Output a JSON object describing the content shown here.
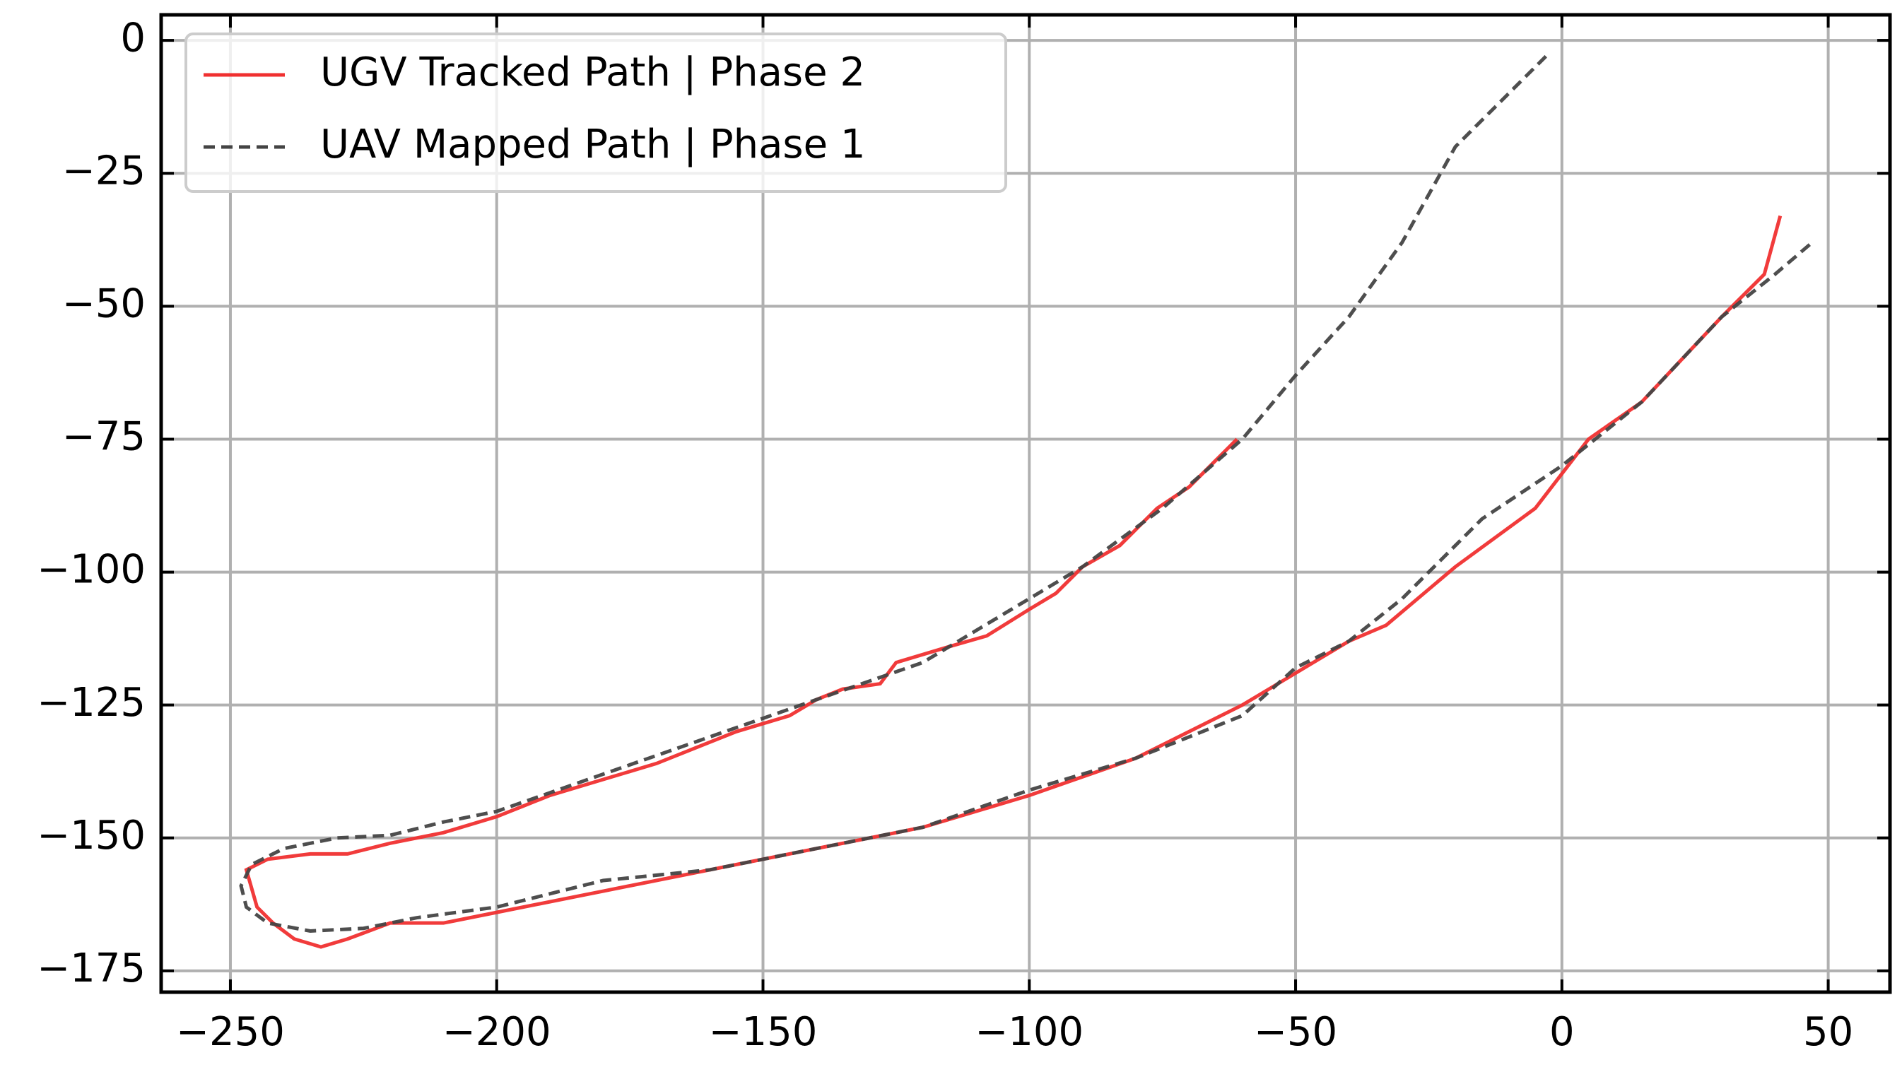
{
  "chart_data": {
    "type": "line",
    "series": [
      {
        "name": "UGV Tracked Path | Phase 2",
        "color": "#f03030",
        "dash": false,
        "x": [
          -61,
          -66,
          -70,
          -76,
          -83,
          -90,
          -95,
          -100,
          -108,
          -115,
          -125,
          -128,
          -135,
          -140,
          -145,
          -155,
          -160,
          -170,
          -180,
          -190,
          -200,
          -210,
          -220,
          -228,
          -235,
          -243,
          -247,
          -245,
          -242,
          -238,
          -233,
          -228,
          -220,
          -210,
          -200,
          -180,
          -160,
          -140,
          -120,
          -100,
          -80,
          -60,
          -40,
          -33,
          -20,
          -5,
          5,
          15,
          30,
          38,
          41
        ],
        "values": [
          -75,
          -80,
          -84,
          -88,
          -95,
          -99,
          -104,
          -107,
          -112,
          -114,
          -117,
          -121,
          -122,
          -124,
          -127,
          -130,
          -132,
          -136,
          -139,
          -142,
          -146,
          -149,
          -151,
          -153,
          -153,
          -154,
          -156,
          -163,
          -166,
          -169,
          -170.5,
          -169,
          -166,
          -166,
          -164,
          -160,
          -156,
          -152,
          -148,
          -142,
          -135,
          -125,
          -113,
          -110,
          -99,
          -88,
          -75,
          -68,
          -52,
          -44,
          -33
        ]
      },
      {
        "name": "UAV Mapped Path | Phase 1",
        "color": "#444444",
        "dash": true,
        "x": [
          -3,
          -8,
          -20,
          -30,
          -40,
          -50,
          -60,
          -75,
          -90,
          -100,
          -120,
          -140,
          -160,
          -180,
          -200,
          -210,
          -220,
          -230,
          -240,
          -246,
          -248,
          -247,
          -243,
          -235,
          -225,
          -215,
          -200,
          -180,
          -160,
          -140,
          -120,
          -100,
          -80,
          -60,
          -50,
          -40,
          -30,
          -15,
          0,
          15,
          30,
          40,
          47
        ],
        "values": [
          -3,
          -8,
          -20,
          -38,
          -52,
          -63,
          -75,
          -88,
          -99,
          -105,
          -117,
          -124,
          -131,
          -138,
          -145,
          -147,
          -149.5,
          -150,
          -152,
          -155,
          -159,
          -163,
          -166,
          -167.5,
          -167,
          -165,
          -163,
          -158,
          -156,
          -152,
          -148,
          -141,
          -135,
          -127,
          -118,
          -113,
          -105,
          -90,
          -80,
          -68,
          -52,
          -44,
          -38
        ]
      }
    ],
    "xlim": [
      -263,
      61.6
    ],
    "ylim": [
      -179,
      4.8
    ],
    "xticks": [
      {
        "value": -250,
        "label": "−250"
      },
      {
        "value": -200,
        "label": "−200"
      },
      {
        "value": -150,
        "label": "−150"
      },
      {
        "value": -100,
        "label": "−100"
      },
      {
        "value": -50,
        "label": "−50"
      },
      0,
      50
    ],
    "yticks": [
      0,
      {
        "value": -25,
        "label": "−25"
      },
      {
        "value": -50,
        "label": "−50"
      },
      {
        "value": -75,
        "label": "−75"
      },
      {
        "value": -100,
        "label": "−100"
      },
      {
        "value": -125,
        "label": "−125"
      },
      {
        "value": -150,
        "label": "−150"
      },
      {
        "value": -175,
        "label": "−175"
      }
    ],
    "grid": true,
    "legend": "upper left"
  }
}
